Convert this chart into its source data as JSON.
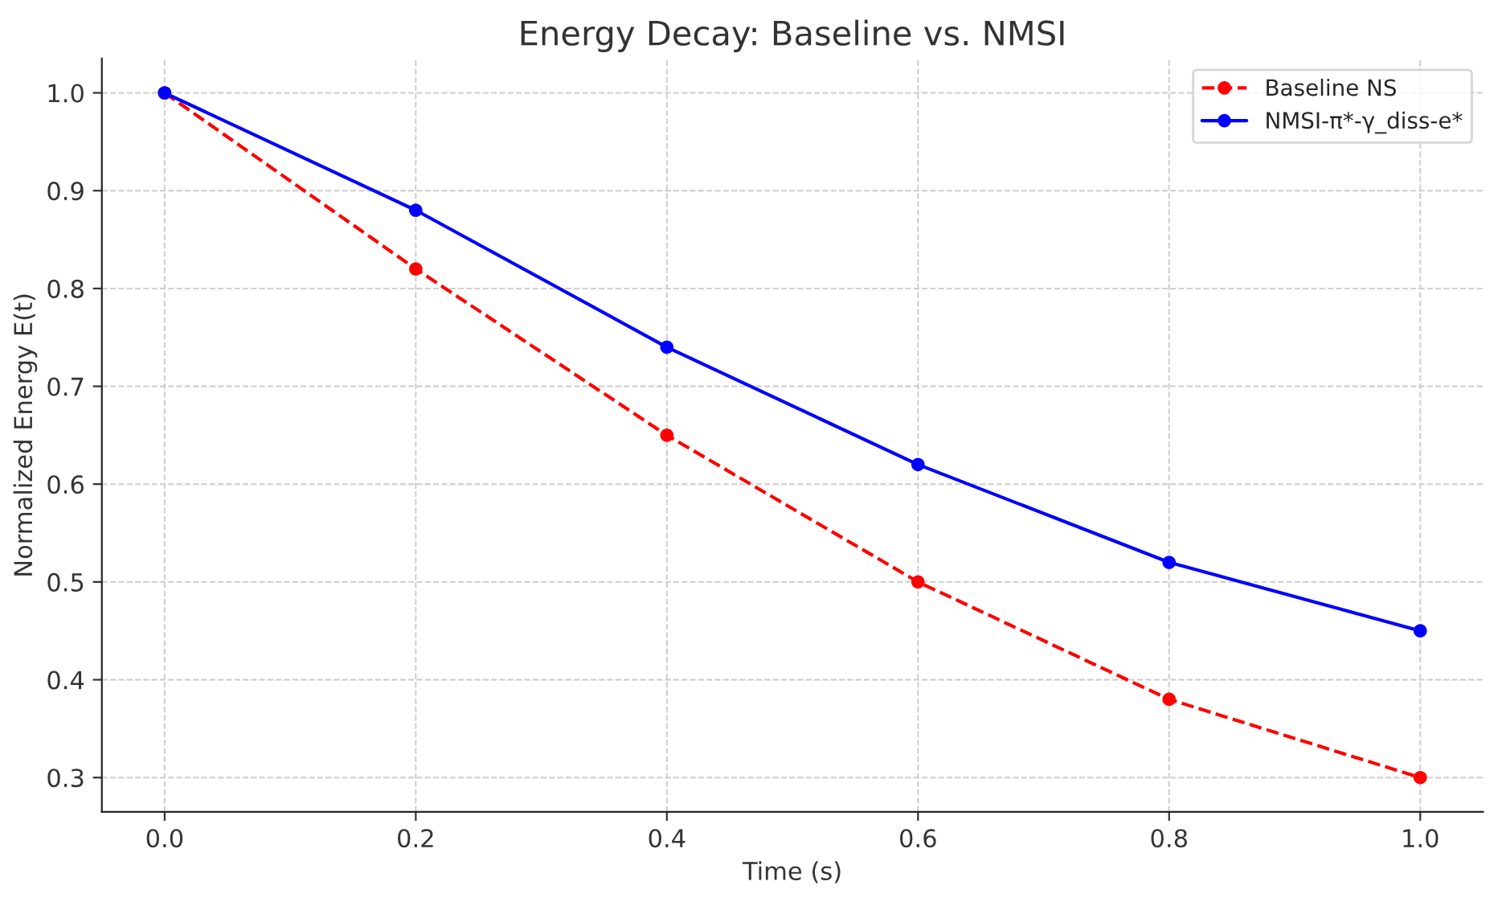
{
  "chart_data": {
    "type": "line",
    "title": "Energy Decay: Baseline vs. NMSI",
    "xlabel": "Time (s)",
    "ylabel": "Normalized Energy E(t)",
    "x": [
      0.0,
      0.2,
      0.4,
      0.6,
      0.8,
      1.0
    ],
    "series": [
      {
        "name": "Baseline NS",
        "color": "#ff0000",
        "values": [
          1.0,
          0.82,
          0.65,
          0.5,
          0.38,
          0.3
        ],
        "line_style": "dashed"
      },
      {
        "name": "NMSI-π*-γ_diss-e*",
        "color": "#0000ff",
        "values": [
          1.0,
          0.88,
          0.74,
          0.62,
          0.52,
          0.45
        ],
        "line_style": "solid"
      }
    ],
    "xlim": [
      -0.05,
      1.05
    ],
    "xticks": [
      {
        "value": 0.0,
        "label": "0.0"
      },
      0.2,
      0.4,
      0.6,
      0.8,
      {
        "value": 1.0,
        "label": "1.0"
      }
    ],
    "ylim": [
      0.265,
      1.035
    ],
    "yticks": [
      0.3,
      0.4,
      0.5,
      0.6,
      0.7,
      0.8,
      0.9,
      {
        "value": 1.0,
        "label": "1.0"
      }
    ],
    "grid": true,
    "legend": "top right",
    "marker": "circle"
  }
}
